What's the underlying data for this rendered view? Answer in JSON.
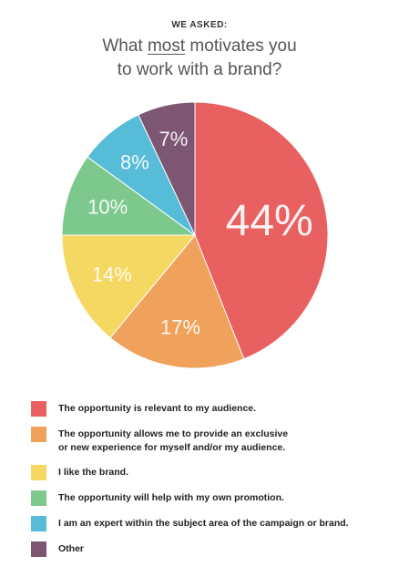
{
  "header": {
    "kicker": "WE ASKED:",
    "question_part1": "What ",
    "question_emphasis": "most",
    "question_part2": " motivates you",
    "question_line2": "to work with a brand?"
  },
  "chart_data": {
    "type": "pie",
    "categories": [
      "The opportunity is relevant to my audience.",
      "The opportunity allows me to provide an exclusive\nor new experience for myself and/or my audience.",
      "I like the brand.",
      "The opportunity will help with my own promotion.",
      "I am an expert within the subject area of the campaign or brand.",
      "Other"
    ],
    "values": [
      44,
      17,
      14,
      10,
      8,
      7
    ],
    "labels": [
      "44%",
      "17%",
      "14%",
      "10%",
      "8%",
      "7%"
    ],
    "colors": [
      "#e8605f",
      "#f0a15c",
      "#f5d862",
      "#7dc98d",
      "#56bcd8",
      "#7c5672"
    ],
    "legend_position": "bottom"
  }
}
